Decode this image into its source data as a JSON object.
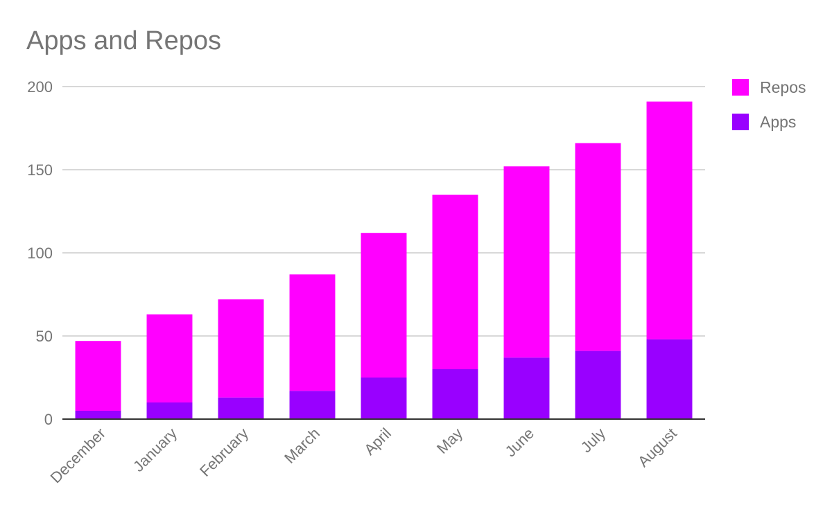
{
  "chart_data": {
    "type": "bar",
    "stacked": true,
    "title": "Apps and Repos",
    "xlabel": "",
    "ylabel": "",
    "categories": [
      "December",
      "January",
      "February",
      "March",
      "April",
      "May",
      "June",
      "July",
      "August"
    ],
    "series": [
      {
        "name": "Apps",
        "color": "#9900ff",
        "values": [
          5,
          10,
          13,
          17,
          25,
          30,
          37,
          41,
          48
        ]
      },
      {
        "name": "Repos",
        "color": "#ff00ff",
        "values": [
          42,
          53,
          59,
          70,
          87,
          105,
          115,
          125,
          143
        ]
      }
    ],
    "ylim": [
      0,
      200
    ],
    "yticks": [
      0,
      50,
      100,
      150,
      200
    ],
    "grid": true,
    "legend_position": "right",
    "legend_order": [
      "Repos",
      "Apps"
    ]
  }
}
